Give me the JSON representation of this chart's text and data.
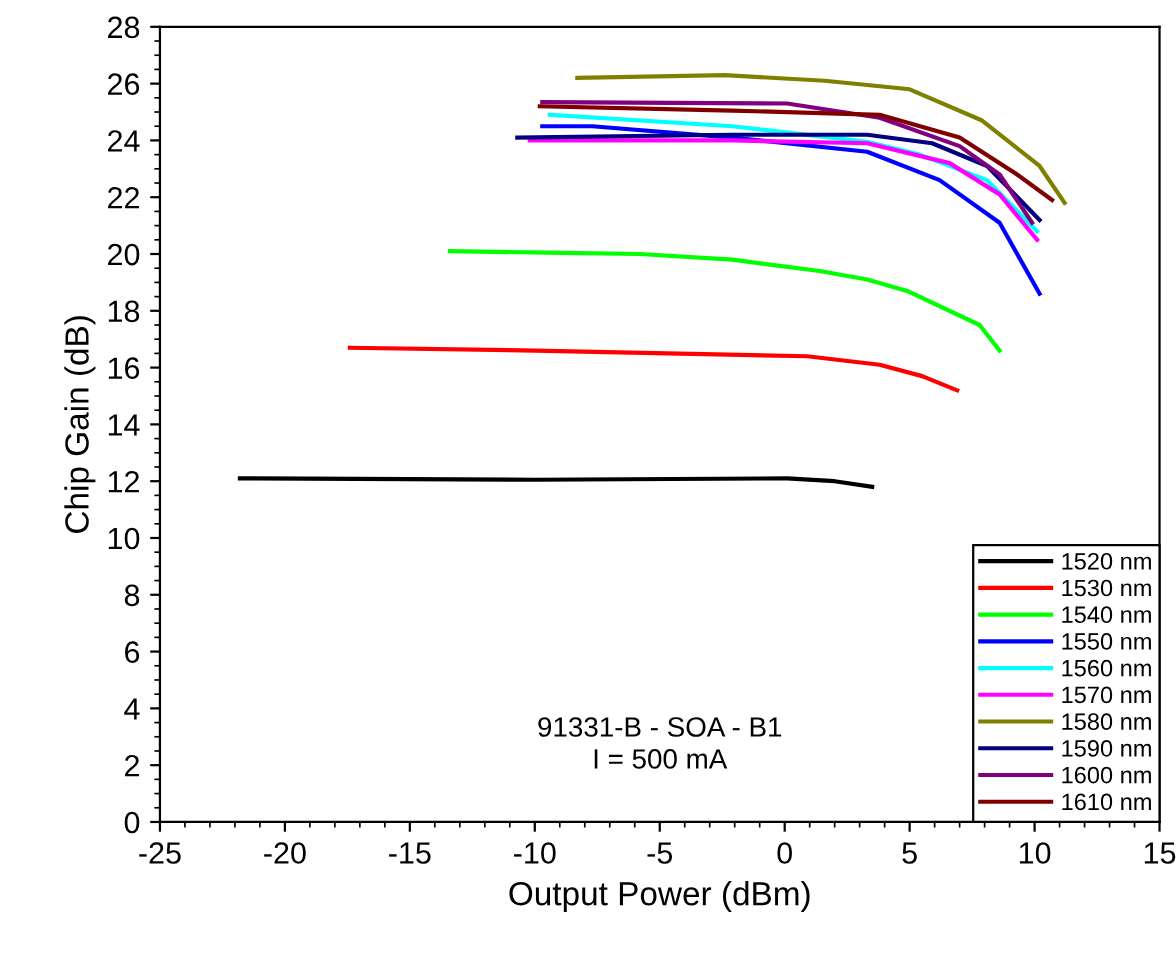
{
  "chart_data": {
    "type": "line",
    "xlabel": "Output Power (dBm)",
    "ylabel": "Chip Gain (dB)",
    "xlim": [
      -25,
      15
    ],
    "xticks": [
      -25,
      -20,
      -15,
      -10,
      -5,
      0,
      5,
      10,
      15
    ],
    "ylim": [
      0,
      28
    ],
    "yticks": [
      0,
      2,
      4,
      6,
      8,
      10,
      12,
      14,
      16,
      18,
      20,
      22,
      24,
      26,
      28
    ],
    "grid": false,
    "legend": "bottom right",
    "marker": "none",
    "line_style": "solid",
    "annotations": [
      "91331-B - SOA - B1",
      "I = 500 mA"
    ],
    "series": [
      {
        "name": "1520 nm",
        "color": "#000000",
        "x": [
          -21.8,
          -10,
          0.1,
          2.0,
          3.5
        ],
        "values": [
          12.1,
          12.05,
          12.1,
          12.0,
          11.8
        ]
      },
      {
        "name": "1530 nm",
        "color": "#ff0000",
        "x": [
          -17.4,
          -10,
          0.9,
          3.8,
          5.5,
          6.9
        ],
        "values": [
          16.7,
          16.6,
          16.4,
          16.1,
          15.7,
          15.2
        ]
      },
      {
        "name": "1540 nm",
        "color": "#00ff00",
        "x": [
          -13.4,
          -9.5,
          -5.8,
          -2.1,
          1.4,
          3.3,
          4.9,
          7.8,
          8.6
        ],
        "values": [
          20.1,
          20.05,
          20.0,
          19.8,
          19.4,
          19.1,
          18.7,
          17.5,
          16.6
        ]
      },
      {
        "name": "1550 nm",
        "color": "#0000ff",
        "x": [
          -9.7,
          -7.7,
          -2.1,
          3.3,
          6.2,
          8.6,
          10.2
        ],
        "values": [
          24.5,
          24.5,
          24.1,
          23.6,
          22.6,
          21.1,
          18.6
        ]
      },
      {
        "name": "1560 nm",
        "color": "#00ffff",
        "x": [
          -9.4,
          -2.1,
          3.3,
          5.4,
          8.1,
          10.1
        ],
        "values": [
          24.9,
          24.5,
          23.95,
          23.5,
          22.6,
          20.8
        ]
      },
      {
        "name": "1570 nm",
        "color": "#ff00ff",
        "x": [
          -10.2,
          -2.1,
          3.3,
          6.6,
          8.6,
          10.1
        ],
        "values": [
          24.0,
          24.0,
          23.9,
          23.2,
          22.1,
          20.5
        ]
      },
      {
        "name": "1580 nm",
        "color": "#808000",
        "x": [
          -8.3,
          -2.4,
          1.6,
          5.0,
          7.9,
          10.2,
          11.2
        ],
        "values": [
          26.2,
          26.3,
          26.1,
          25.8,
          24.7,
          23.1,
          21.8
        ]
      },
      {
        "name": "1590 nm",
        "color": "#000080",
        "x": [
          -10.7,
          -2.1,
          3.3,
          5.9,
          8.1,
          10.2
        ],
        "values": [
          24.1,
          24.2,
          24.2,
          23.9,
          23.1,
          21.2
        ]
      },
      {
        "name": "1600 nm",
        "color": "#800080",
        "x": [
          -9.7,
          0.1,
          3.8,
          7.0,
          8.6,
          9.9
        ],
        "values": [
          25.35,
          25.3,
          24.8,
          23.8,
          22.8,
          21.1
        ]
      },
      {
        "name": "1610 nm",
        "color": "#800000",
        "x": [
          -9.8,
          -2.1,
          3.8,
          7.0,
          9.3,
          10.7
        ],
        "values": [
          25.2,
          25.05,
          24.9,
          24.1,
          22.8,
          21.9
        ]
      }
    ]
  }
}
